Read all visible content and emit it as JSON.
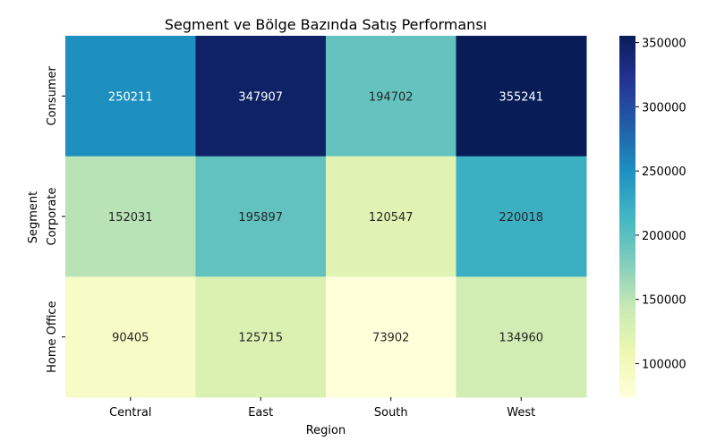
{
  "chart_data": {
    "type": "heatmap",
    "title": "Segment ve Bölge Bazında Satış Performansı",
    "xlabel": "Region",
    "ylabel": "Segment",
    "x_categories": [
      "Central",
      "East",
      "South",
      "West"
    ],
    "y_categories": [
      "Consumer",
      "Corporate",
      "Home Office"
    ],
    "values": [
      [
        250211,
        347907,
        194702,
        355241
      ],
      [
        152031,
        195897,
        120547,
        220018
      ],
      [
        90405,
        125715,
        73902,
        134960
      ]
    ],
    "colormap": "YlGnBu",
    "colorbar": {
      "min": 73902,
      "max": 355241,
      "ticks": [
        100000,
        150000,
        200000,
        250000,
        300000,
        350000
      ],
      "tick_labels": [
        "100000",
        "150000",
        "200000",
        "250000",
        "300000",
        "350000"
      ]
    },
    "annotations": true,
    "grid": false
  }
}
